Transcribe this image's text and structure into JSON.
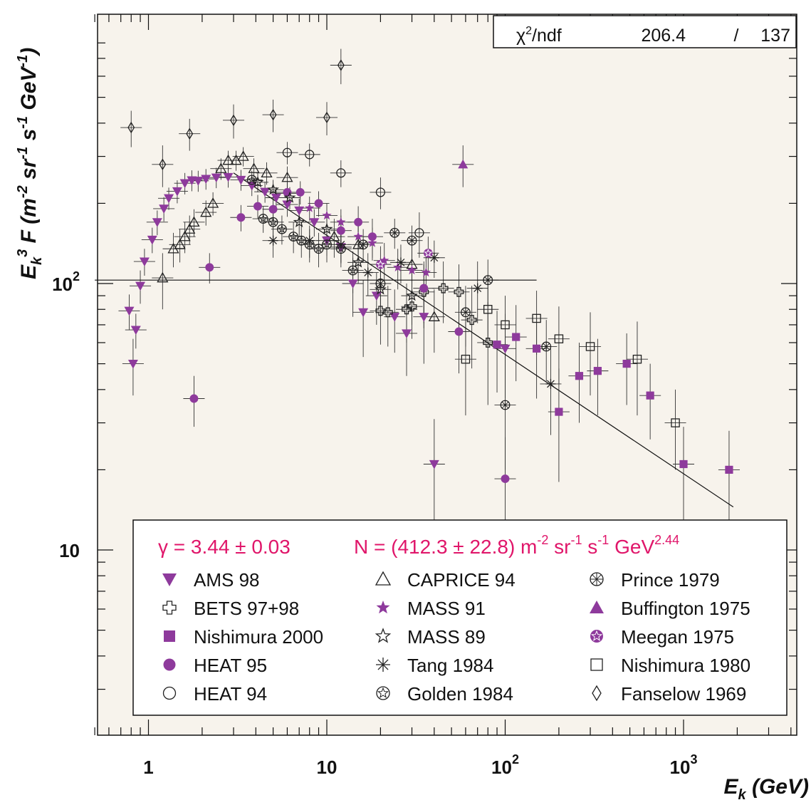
{
  "stats": {
    "label_main": "χ",
    "label_sup": "2",
    "label_rest": "/ndf",
    "value": "206.4",
    "sep": "/",
    "ndf": "137"
  },
  "axes": {
    "x_label_main": "E",
    "x_label_sub": "k",
    "x_label_rest": " (GeV)",
    "y_label_html": "E_k^3 F (m^-2 sr^-1 s^-1 GeV^-1)",
    "x_ticks": [
      {
        "value": 1,
        "base": "1",
        "exp": ""
      },
      {
        "value": 10,
        "base": "10",
        "exp": ""
      },
      {
        "value": 100,
        "base": "10",
        "exp": "2"
      },
      {
        "value": 1000,
        "base": "10",
        "exp": "3"
      }
    ],
    "y_ticks": [
      {
        "value": 10,
        "base": "10",
        "exp": ""
      },
      {
        "value": 100,
        "base": "10",
        "exp": "2"
      }
    ]
  },
  "fit": {
    "gamma_text": "γ = 3.44 ± 0.03",
    "n_text_main": "N = (412.3 ± 22.8) m",
    "n_exp1": "-2",
    "n_sr": " sr",
    "n_exp2": "-1",
    "n_s": " s",
    "n_exp3": "-1",
    "n_gev": " GeV",
    "n_exp4": "2.44",
    "color": "#e0166a"
  },
  "colors": {
    "purple": "#8e3a9c",
    "plot_bg": "#f7f3ec",
    "line": "#222222"
  },
  "chart_data": {
    "type": "scatter",
    "title": "",
    "xlabel": "E_k (GeV)",
    "ylabel": "E_k^3 F (m^-2 sr^-1 s^-1 GeV^-1)",
    "xscale": "log",
    "yscale": "log",
    "xlim": [
      0.5,
      4000
    ],
    "ylim": [
      2.6,
      800
    ],
    "fit_line": {
      "x": [
        3.0,
        1900
      ],
      "y": [
        260,
        14.5
      ]
    },
    "horizontal_line": {
      "y": 103,
      "xmin": 0.5,
      "xmax": 150
    },
    "legend_position": "bottom-left",
    "series": [
      {
        "name": "AMS 98",
        "marker": "triangle-down-filled",
        "color": "#8e3a9c",
        "points": [
          [
            0.78,
            79,
            12
          ],
          [
            0.82,
            50,
            12
          ],
          [
            0.85,
            67,
            10
          ],
          [
            0.9,
            98,
            14
          ],
          [
            0.95,
            121,
            14
          ],
          [
            1.05,
            146,
            16
          ],
          [
            1.12,
            170,
            18
          ],
          [
            1.22,
            191,
            20
          ],
          [
            1.3,
            209,
            20
          ],
          [
            1.45,
            222,
            22
          ],
          [
            1.6,
            238,
            22
          ],
          [
            1.75,
            244,
            22
          ],
          [
            1.9,
            243,
            22
          ],
          [
            2.1,
            247,
            22
          ],
          [
            2.4,
            250,
            22
          ],
          [
            2.8,
            251,
            22
          ],
          [
            3.3,
            245,
            22
          ],
          [
            3.8,
            233,
            20
          ],
          [
            4.5,
            221,
            20
          ],
          [
            5.2,
            210,
            20
          ],
          [
            6.0,
            198,
            20
          ],
          [
            7.0,
            188,
            20
          ],
          [
            8.5,
            170,
            20
          ],
          [
            10,
            145,
            18
          ],
          [
            12,
            137,
            18
          ],
          [
            14,
            100,
            25
          ],
          [
            16,
            78,
            25
          ],
          [
            19,
            90,
            20
          ],
          [
            24,
            75,
            20
          ],
          [
            28,
            65,
            20
          ],
          [
            35,
            75,
            25
          ],
          [
            40,
            21,
            10
          ],
          [
            100,
            57,
            20
          ]
        ]
      },
      {
        "name": "BETS 97+98",
        "marker": "cross-open",
        "color": "#222222",
        "points": [
          [
            20,
            79,
            20
          ],
          [
            22,
            78,
            20
          ],
          [
            28,
            80,
            20
          ],
          [
            30,
            82,
            20
          ],
          [
            35,
            93,
            25
          ],
          [
            45,
            96,
            25
          ],
          [
            55,
            93,
            25
          ],
          [
            65,
            73,
            25
          ],
          [
            80,
            60,
            25
          ]
        ]
      },
      {
        "name": "Nishimura 2000",
        "marker": "square-filled",
        "color": "#8e3a9c",
        "points": [
          [
            90,
            59,
            20
          ],
          [
            115,
            63,
            20
          ],
          [
            150,
            57,
            20
          ],
          [
            200,
            33,
            15
          ],
          [
            260,
            45,
            15
          ],
          [
            330,
            47,
            15
          ],
          [
            480,
            50,
            15
          ],
          [
            650,
            38,
            12
          ],
          [
            1000,
            21,
            8
          ],
          [
            1800,
            20,
            8
          ]
        ]
      },
      {
        "name": "HEAT 95",
        "marker": "circle-filled",
        "color": "#8e3a9c",
        "points": [
          [
            1.8,
            37,
            8
          ],
          [
            2.2,
            115,
            15
          ],
          [
            3.3,
            177,
            20
          ],
          [
            4.1,
            195,
            20
          ],
          [
            5.0,
            190,
            20
          ],
          [
            6.0,
            220,
            20
          ],
          [
            7.1,
            220,
            22
          ],
          [
            9.0,
            200,
            22
          ],
          [
            12,
            158,
            22
          ],
          [
            15,
            170,
            25
          ],
          [
            18,
            150,
            25
          ],
          [
            35,
            96,
            25
          ],
          [
            55,
            66,
            20
          ],
          [
            100,
            18.5,
            8
          ]
        ]
      },
      {
        "name": "HEAT 94",
        "marker": "circle-open",
        "color": "#222222",
        "points": [
          [
            6,
            310,
            30
          ],
          [
            8,
            305,
            30
          ],
          [
            12,
            260,
            30
          ],
          [
            20,
            220,
            30
          ],
          [
            33,
            155,
            30
          ]
        ]
      },
      {
        "name": "CAPRICE 94",
        "marker": "triangle-up-open",
        "color": "#222222",
        "points": [
          [
            1.2,
            105,
            25
          ],
          [
            1.38,
            135,
            20
          ],
          [
            1.5,
            140,
            20
          ],
          [
            1.6,
            150,
            20
          ],
          [
            1.7,
            160,
            20
          ],
          [
            1.8,
            170,
            20
          ],
          [
            2.1,
            185,
            20
          ],
          [
            2.3,
            200,
            20
          ],
          [
            2.55,
            270,
            25
          ],
          [
            2.8,
            290,
            25
          ],
          [
            3.1,
            290,
            25
          ],
          [
            3.4,
            300,
            25
          ],
          [
            3.9,
            270,
            25
          ],
          [
            4.6,
            260,
            25
          ],
          [
            6.0,
            250,
            25
          ],
          [
            11,
            150,
            25
          ],
          [
            15,
            140,
            25
          ],
          [
            30,
            118,
            20
          ],
          [
            40,
            75,
            20
          ]
        ]
      },
      {
        "name": "MASS 91",
        "marker": "star-filled",
        "color": "#8e3a9c",
        "points": [
          [
            6,
            218,
            20
          ],
          [
            8,
            192,
            20
          ],
          [
            10,
            180,
            20
          ],
          [
            12,
            170,
            20
          ],
          [
            15,
            150,
            20
          ],
          [
            18,
            142,
            20
          ],
          [
            21,
            122,
            20
          ],
          [
            25,
            115,
            20
          ],
          [
            30,
            112,
            20
          ],
          [
            36,
            110,
            20
          ]
        ]
      },
      {
        "name": "MASS 89",
        "marker": "star-open",
        "color": "#222222",
        "points": [
          [
            4.1,
            240,
            20
          ],
          [
            5.0,
            225,
            20
          ],
          [
            6.2,
            210,
            20
          ],
          [
            7.0,
            170,
            20
          ],
          [
            10,
            160,
            20
          ],
          [
            15,
            120,
            20
          ],
          [
            20,
            95,
            20
          ],
          [
            30,
            90,
            20
          ]
        ]
      },
      {
        "name": "Tang 1984",
        "marker": "asterisk",
        "color": "#222222",
        "points": [
          [
            5,
            145,
            20
          ],
          [
            8,
            145,
            20
          ],
          [
            12,
            140,
            20
          ],
          [
            17,
            110,
            20
          ],
          [
            26,
            120,
            20
          ],
          [
            40,
            125,
            20
          ],
          [
            70,
            96,
            25
          ],
          [
            180,
            42,
            15
          ]
        ]
      },
      {
        "name": "Golden 1984",
        "marker": "star-in-circle-open",
        "color": "#222222",
        "points": [
          [
            3.8,
            245,
            20
          ],
          [
            4.4,
            175,
            20
          ],
          [
            5.0,
            170,
            20
          ],
          [
            5.6,
            160,
            20
          ],
          [
            6.5,
            150,
            20
          ],
          [
            7.2,
            145,
            20
          ],
          [
            8.0,
            140,
            20
          ],
          [
            9.0,
            135,
            20
          ],
          [
            10,
            140,
            20
          ],
          [
            12,
            135,
            20
          ],
          [
            14,
            112,
            20
          ]
        ]
      },
      {
        "name": "Prince 1979",
        "marker": "x-in-circle-open",
        "color": "#222222",
        "points": [
          [
            16,
            140,
            20
          ],
          [
            20,
            100,
            20
          ],
          [
            24,
            155,
            20
          ],
          [
            30,
            145,
            20
          ],
          [
            60,
            78,
            20
          ],
          [
            80,
            103,
            20
          ],
          [
            100,
            35,
            15
          ],
          [
            170,
            58,
            15
          ]
        ]
      },
      {
        "name": "Buffington 1975",
        "marker": "triangle-up-filled",
        "color": "#8e3a9c",
        "points": [
          [
            58,
            280,
            50
          ]
        ]
      },
      {
        "name": "Meegan 1975",
        "marker": "star-in-circle-filled",
        "color": "#8e3a9c",
        "points": [
          [
            20,
            118,
            20
          ],
          [
            37,
            130,
            20
          ]
        ]
      },
      {
        "name": "Nishimura 1980",
        "marker": "square-open",
        "color": "#222222",
        "points": [
          [
            60,
            52,
            20
          ],
          [
            80,
            80,
            20
          ],
          [
            100,
            70,
            20
          ],
          [
            150,
            74,
            20
          ],
          [
            200,
            62,
            20
          ],
          [
            300,
            58,
            20
          ],
          [
            550,
            52,
            20
          ],
          [
            900,
            30,
            10
          ]
        ]
      },
      {
        "name": "Fanselow 1969",
        "marker": "diamond-open",
        "color": "#222222",
        "points": [
          [
            0.8,
            385,
            60
          ],
          [
            1.2,
            280,
            50
          ],
          [
            1.7,
            365,
            50
          ],
          [
            3.0,
            410,
            60
          ],
          [
            5.0,
            430,
            60
          ],
          [
            10,
            420,
            60
          ],
          [
            12,
            660,
            100
          ]
        ]
      }
    ]
  }
}
